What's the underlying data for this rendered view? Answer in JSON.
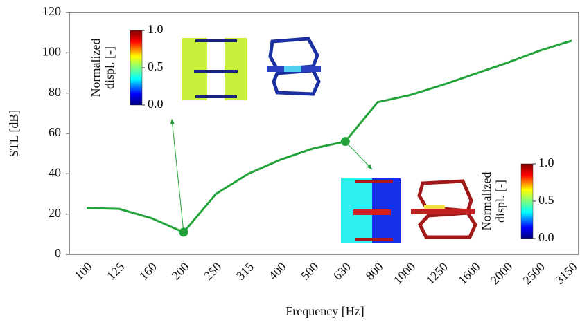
{
  "chart_data": {
    "type": "line",
    "x_label": "Frequency [Hz]",
    "y_label": "STL [dB]",
    "categories": [
      "100",
      "125",
      "160",
      "200",
      "250",
      "315",
      "400",
      "500",
      "630",
      "800",
      "1000",
      "1250",
      "1600",
      "2000",
      "2500",
      "3150"
    ],
    "series": [
      {
        "color": "#22a33a",
        "values": [
          23,
          22.6,
          18,
          11,
          30,
          40,
          47,
          52.5,
          56,
          75.5,
          79,
          84,
          89.5,
          95,
          101,
          106
        ]
      }
    ],
    "highlight_points": [
      3,
      8
    ],
    "ylim": [
      0,
      120
    ],
    "yticks": [
      0,
      20,
      40,
      60,
      80,
      100,
      120
    ],
    "annotations": [
      {
        "label": [
          "Normalized",
          "displ. [-]"
        ],
        "colorbar_ticks": [
          {
            "value": 1,
            "label": "1.0"
          },
          {
            "value": 0.5,
            "label": "0.5"
          },
          {
            "value": 0,
            "label": "0.0"
          }
        ]
      },
      {
        "label": [
          "Normalized",
          "displ. [-]"
        ],
        "colorbar_ticks": [
          {
            "value": 1,
            "label": "1.0"
          },
          {
            "value": 0.5,
            "label": "0.5"
          },
          {
            "value": 0,
            "label": "0.0"
          }
        ]
      }
    ]
  }
}
